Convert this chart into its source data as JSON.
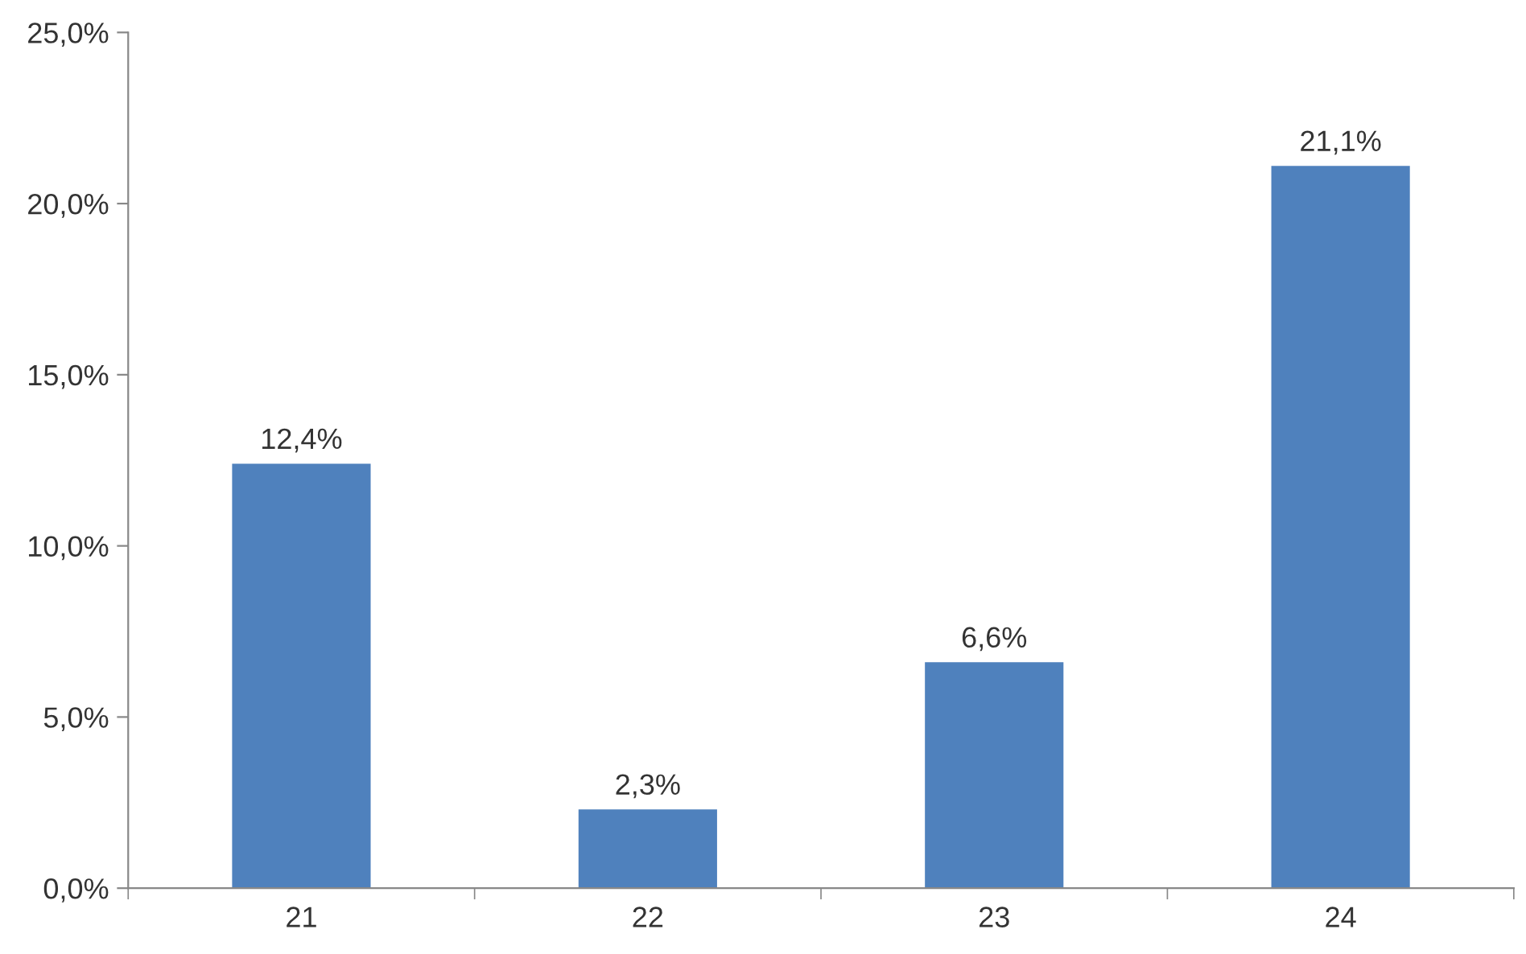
{
  "chart_data": {
    "type": "bar",
    "categories": [
      "21",
      "22",
      "23",
      "24"
    ],
    "values": [
      12.4,
      2.3,
      6.6,
      21.1
    ],
    "color": "#4f81bd",
    "value_labels": [
      "12,4%",
      "2,3%",
      "6,6%",
      "21,1%"
    ],
    "ylim": [
      0,
      25
    ],
    "yticks": [
      {
        "value": 0,
        "label": "0,0%"
      },
      {
        "value": 5,
        "label": "5,0%"
      },
      {
        "value": 10,
        "label": "10,0%"
      },
      {
        "value": 15,
        "label": "15,0%"
      },
      {
        "value": 20,
        "label": "20,0%"
      },
      {
        "value": 25,
        "label": "25,0%"
      }
    ],
    "grid": false,
    "legend": false
  }
}
